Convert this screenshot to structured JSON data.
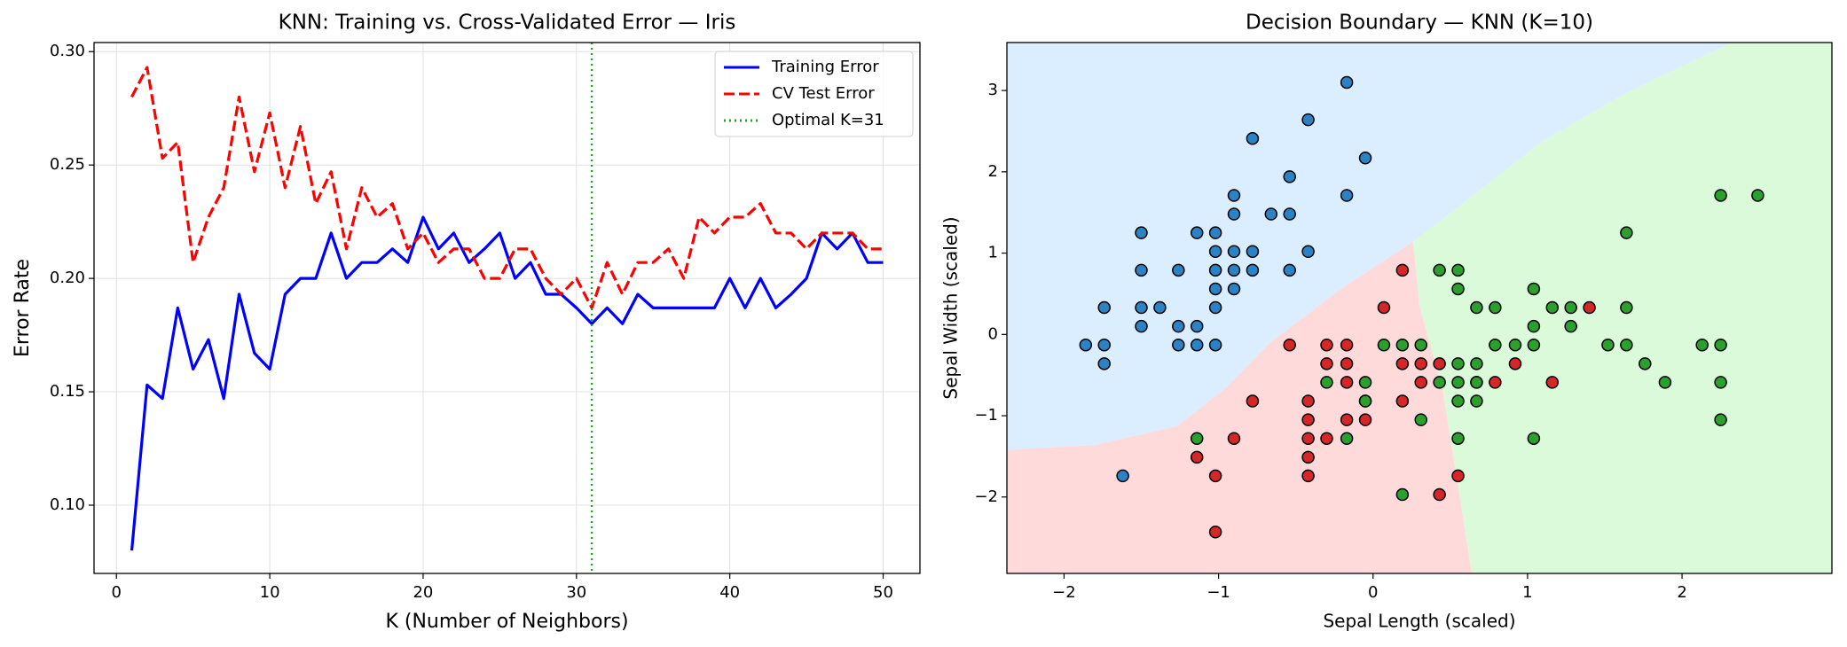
{
  "chart_data": [
    {
      "type": "line",
      "title": "KNN: Training vs. Cross-Validated Error — Iris",
      "xlabel": "K (Number of Neighbors)",
      "ylabel": "Error Rate",
      "x": [
        1,
        2,
        3,
        4,
        5,
        6,
        7,
        8,
        9,
        10,
        11,
        12,
        13,
        14,
        15,
        16,
        17,
        18,
        19,
        20,
        21,
        22,
        23,
        24,
        25,
        26,
        27,
        28,
        29,
        30,
        31,
        32,
        33,
        34,
        35,
        36,
        37,
        38,
        39,
        40,
        41,
        42,
        43,
        44,
        45,
        46,
        47,
        48,
        49,
        50
      ],
      "series": [
        {
          "name": "Training Error",
          "color": "#0000ff",
          "style": "solid",
          "values": [
            0.08,
            0.153,
            0.147,
            0.187,
            0.16,
            0.173,
            0.147,
            0.193,
            0.167,
            0.16,
            0.193,
            0.2,
            0.2,
            0.22,
            0.2,
            0.207,
            0.207,
            0.213,
            0.207,
            0.227,
            0.213,
            0.22,
            0.207,
            0.213,
            0.22,
            0.2,
            0.207,
            0.193,
            0.193,
            0.187,
            0.18,
            0.187,
            0.18,
            0.193,
            0.187,
            0.187,
            0.187,
            0.187,
            0.187,
            0.2,
            0.187,
            0.2,
            0.187,
            0.193,
            0.2,
            0.22,
            0.213,
            0.22,
            0.207,
            0.207
          ]
        },
        {
          "name": "CV Test Error",
          "color": "#ff0000",
          "style": "dashed",
          "values": [
            0.28,
            0.293,
            0.253,
            0.26,
            0.207,
            0.227,
            0.24,
            0.28,
            0.247,
            0.273,
            0.24,
            0.267,
            0.233,
            0.247,
            0.213,
            0.24,
            0.227,
            0.233,
            0.213,
            0.22,
            0.207,
            0.213,
            0.213,
            0.2,
            0.2,
            0.213,
            0.213,
            0.2,
            0.193,
            0.2,
            0.187,
            0.207,
            0.193,
            0.207,
            0.207,
            0.213,
            0.2,
            0.227,
            0.22,
            0.227,
            0.227,
            0.233,
            0.22,
            0.22,
            0.213,
            0.22,
            0.22,
            0.22,
            0.213,
            0.213
          ]
        }
      ],
      "vline": {
        "x": 31,
        "color": "#2ca02c",
        "label": "Optimal K=31"
      },
      "xlim": [
        -1.46,
        52.4
      ],
      "ylim": [
        0.0699,
        0.304
      ],
      "xticks": [
        0,
        10,
        20,
        30,
        40,
        50
      ],
      "yticks": [
        {
          "value": 0.1,
          "label": "0.10"
        },
        {
          "value": 0.15,
          "label": "0.15"
        },
        {
          "value": 0.2,
          "label": "0.20"
        },
        {
          "value": 0.25,
          "label": "0.25"
        },
        {
          "value": 0.3,
          "label": "0.30"
        }
      ],
      "grid": true,
      "legend": "upper right"
    },
    {
      "type": "scatter",
      "title": "Decision Boundary — KNN (K=10)",
      "xlabel": "Sepal Length (scaled)",
      "ylabel": "Sepal Width (scaled)",
      "regions": [
        {
          "color": "#dbeeff",
          "points": [
            [
              -2.37,
              -1.42
            ],
            [
              -1.8,
              -1.36
            ],
            [
              -1.27,
              -1.13
            ],
            [
              -0.96,
              -0.67
            ],
            [
              -0.66,
              -0.09
            ],
            [
              -0.2,
              0.57
            ],
            [
              0.26,
              1.14
            ],
            [
              0.56,
              1.58
            ],
            [
              1.1,
              2.38
            ],
            [
              1.63,
              2.96
            ],
            [
              2.32,
              3.59
            ],
            [
              -2.37,
              3.59
            ]
          ]
        },
        {
          "color": "#ffdada",
          "points": [
            [
              -2.37,
              -1.42
            ],
            [
              -1.8,
              -1.36
            ],
            [
              -1.27,
              -1.13
            ],
            [
              -0.96,
              -0.67
            ],
            [
              -0.66,
              -0.09
            ],
            [
              -0.2,
              0.57
            ],
            [
              0.26,
              1.14
            ],
            [
              0.3,
              0.35
            ],
            [
              0.45,
              -0.67
            ],
            [
              0.64,
              -2.94
            ],
            [
              -2.37,
              -2.94
            ]
          ]
        },
        {
          "color": "#dafada",
          "points": [
            [
              0.26,
              1.14
            ],
            [
              0.56,
              1.58
            ],
            [
              1.1,
              2.38
            ],
            [
              1.63,
              2.96
            ],
            [
              2.32,
              3.59
            ],
            [
              2.97,
              3.59
            ],
            [
              2.97,
              -2.94
            ],
            [
              0.64,
              -2.94
            ],
            [
              0.45,
              -0.67
            ],
            [
              0.3,
              0.35
            ]
          ]
        }
      ],
      "series": [
        {
          "color": "#2b83c6",
          "x": [
            -0.17,
            -0.42,
            -0.05,
            -0.78,
            -0.9,
            -0.54,
            -0.17,
            -0.9,
            -0.66,
            -0.54,
            -1.5,
            -1.14,
            -1.02,
            -0.9,
            -1.02,
            -0.78,
            -0.42,
            -1.02,
            -0.9,
            -0.78,
            -0.54,
            -1.26,
            -1.5,
            -1.02,
            -0.9,
            -1.02,
            -1.5,
            -1.38,
            -1.74,
            -1.5,
            -1.26,
            -1.14,
            -1.26,
            -1.14,
            -1.02,
            -1.74,
            -1.86,
            -1.74,
            -1.62
          ],
          "y": [
            3.1,
            2.64,
            2.17,
            2.41,
            1.71,
            1.94,
            1.71,
            1.48,
            1.48,
            1.48,
            1.25,
            1.25,
            1.25,
            1.02,
            1.02,
            1.02,
            1.02,
            0.79,
            0.79,
            0.79,
            0.79,
            0.79,
            0.79,
            0.56,
            0.56,
            0.33,
            0.33,
            0.33,
            0.33,
            0.1,
            0.1,
            0.1,
            -0.13,
            -0.13,
            -0.13,
            -0.13,
            -0.13,
            -0.36,
            -1.74
          ]
        },
        {
          "color": "#d62728",
          "x": [
            0.07,
            0.19,
            -0.54,
            -0.3,
            -0.17,
            -0.3,
            -0.17,
            0.19,
            0.31,
            0.43,
            0.92,
            -0.17,
            0.31,
            0.67,
            0.79,
            1.16,
            -0.78,
            -0.42,
            -0.05,
            0.19,
            -0.42,
            -0.17,
            -0.05,
            -0.42,
            -0.3,
            -0.9,
            -1.14,
            -0.42,
            -1.02,
            -0.42,
            0.55,
            0.43,
            -1.02,
            1.4
          ],
          "y": [
            0.33,
            0.79,
            -0.13,
            -0.13,
            -0.13,
            -0.36,
            -0.36,
            -0.36,
            -0.36,
            -0.36,
            -0.36,
            -0.59,
            -0.59,
            -0.59,
            -0.59,
            -0.59,
            -0.82,
            -0.82,
            -0.82,
            -0.82,
            -1.05,
            -1.05,
            -1.05,
            -1.28,
            -1.28,
            -1.28,
            -1.51,
            -1.51,
            -1.74,
            -1.74,
            -1.74,
            -1.97,
            -2.43,
            0.33
          ]
        },
        {
          "color": "#2ca02c",
          "x": [
            2.25,
            2.49,
            1.64,
            0.43,
            0.55,
            0.55,
            1.04,
            0.67,
            0.79,
            1.16,
            1.28,
            1.64,
            1.04,
            1.28,
            0.07,
            0.19,
            0.31,
            0.79,
            0.92,
            1.04,
            1.52,
            1.64,
            2.13,
            2.25,
            0.55,
            0.67,
            1.76,
            -0.3,
            -0.05,
            0.43,
            0.55,
            0.67,
            1.89,
            2.25,
            -0.05,
            0.55,
            0.67,
            0.31,
            2.25,
            -1.14,
            -0.17,
            0.55,
            1.04,
            0.19
          ],
          "y": [
            1.71,
            1.71,
            1.25,
            0.79,
            0.79,
            0.56,
            0.56,
            0.33,
            0.33,
            0.33,
            0.33,
            0.33,
            0.1,
            0.1,
            -0.13,
            -0.13,
            -0.13,
            -0.13,
            -0.13,
            -0.13,
            -0.13,
            -0.13,
            -0.13,
            -0.13,
            -0.36,
            -0.36,
            -0.36,
            -0.59,
            -0.59,
            -0.59,
            -0.59,
            -0.59,
            -0.59,
            -0.59,
            -0.82,
            -0.82,
            -0.82,
            -1.05,
            -1.05,
            -1.28,
            -1.28,
            -1.28,
            -1.28,
            -1.97
          ]
        }
      ],
      "xlim": [
        -2.37,
        2.97
      ],
      "ylim": [
        -2.94,
        3.59
      ],
      "xticks": [
        {
          "value": -2,
          "label": "−2"
        },
        {
          "value": -1,
          "label": "−1"
        },
        0,
        1,
        2
      ],
      "yticks": [
        {
          "value": -2,
          "label": "−2"
        },
        {
          "value": -1,
          "label": "−1"
        },
        0,
        1,
        2,
        3
      ],
      "grid": false
    }
  ]
}
